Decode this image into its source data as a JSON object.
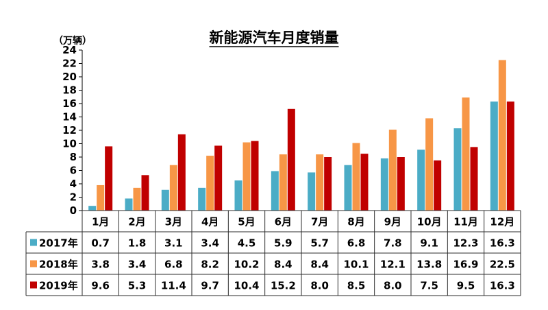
{
  "chart_data": {
    "type": "bar",
    "title": "新能源汽车月度销量",
    "unit_label": "（万辆）",
    "categories": [
      "1月",
      "2月",
      "3月",
      "4月",
      "5月",
      "6月",
      "7月",
      "8月",
      "9月",
      "10月",
      "11月",
      "12月"
    ],
    "ylim": [
      0,
      24
    ],
    "yticks": [
      0,
      2,
      4,
      6,
      8,
      10,
      12,
      14,
      16,
      18,
      20,
      22,
      24
    ],
    "grid": false,
    "legend": "data-table-below",
    "series": [
      {
        "name": "2017年",
        "color": "#4BACC6",
        "values": [
          0.7,
          1.8,
          3.1,
          3.4,
          4.5,
          5.9,
          5.7,
          6.8,
          7.8,
          9.1,
          12.3,
          16.3
        ]
      },
      {
        "name": "2018年",
        "color": "#F79646",
        "values": [
          3.8,
          3.4,
          6.8,
          8.2,
          10.2,
          8.4,
          8.4,
          10.1,
          12.1,
          13.8,
          16.9,
          22.5
        ]
      },
      {
        "name": "2019年",
        "color": "#C00000",
        "values": [
          9.6,
          5.3,
          11.4,
          9.7,
          10.4,
          15.2,
          8.0,
          8.5,
          8.0,
          7.5,
          9.5,
          16.3
        ]
      }
    ],
    "table_values": [
      [
        "0.7",
        "1.8",
        "3.1",
        "3.4",
        "4.5",
        "5.9",
        "5.7",
        "6.8",
        "7.8",
        "9.1",
        "12.3",
        "16.3"
      ],
      [
        "3.8",
        "3.4",
        "6.8",
        "8.2",
        "10.2",
        "8.4",
        "8.4",
        "10.1",
        "12.1",
        "13.8",
        "16.9",
        "22.5"
      ],
      [
        "9.6",
        "5.3",
        "11.4",
        "9.7",
        "10.4",
        "15.2",
        "8.0",
        "8.5",
        "8.0",
        "7.5",
        "9.5",
        "16.3"
      ]
    ]
  }
}
